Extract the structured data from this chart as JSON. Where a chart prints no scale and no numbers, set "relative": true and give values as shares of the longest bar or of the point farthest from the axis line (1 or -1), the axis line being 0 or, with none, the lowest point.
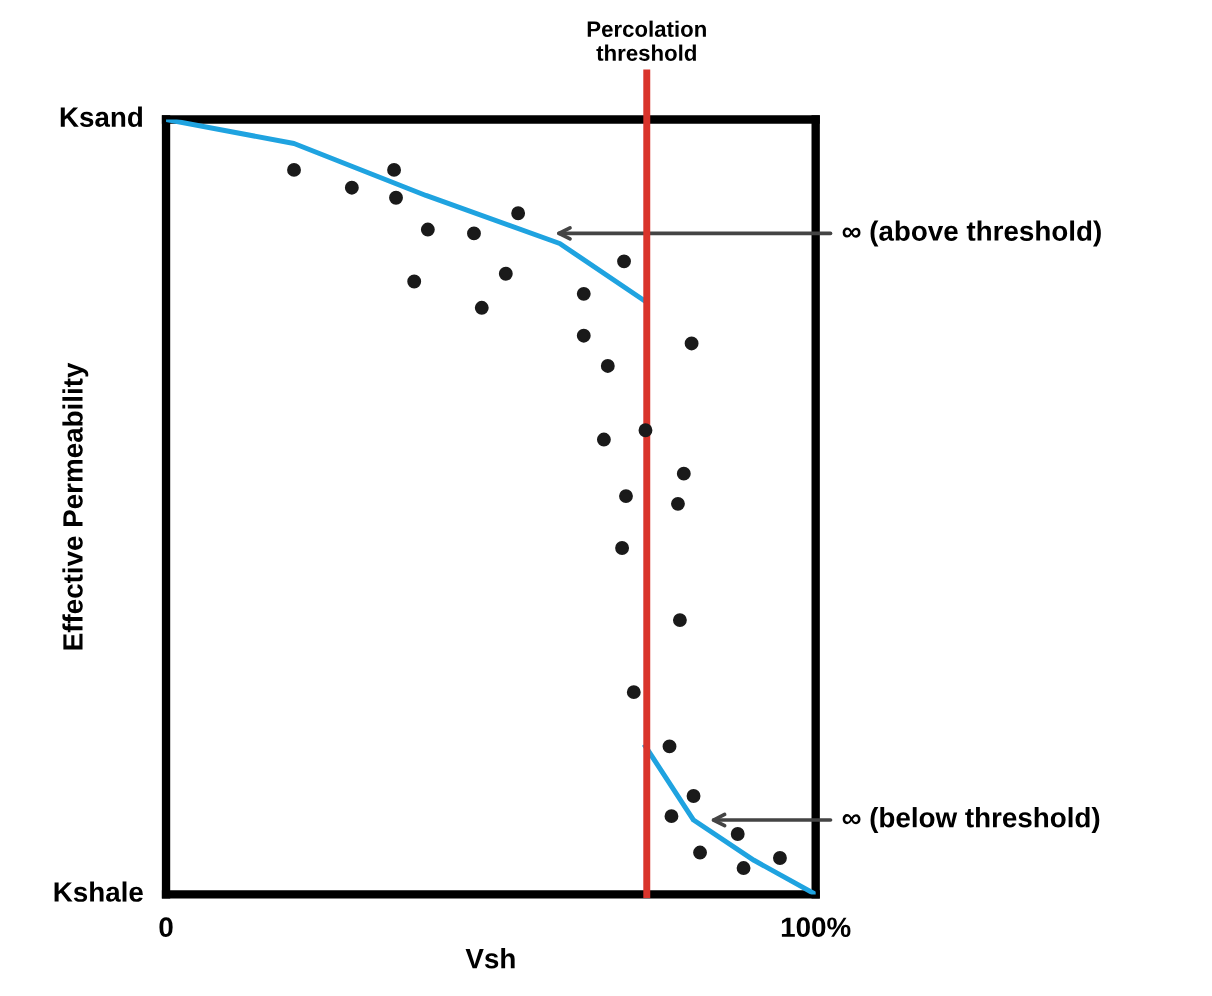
{
  "chart_data": {
    "type": "scatter",
    "xlabel": "Vsh",
    "ylabel": "Effective Permeability",
    "xlim": [
      0,
      100
    ],
    "relative": true,
    "xticks": [
      0,
      {
        "value": 100,
        "label": "100%"
      }
    ],
    "series": [
      {
        "color": "#1a1a1a",
        "marker": "circle",
        "x": [
          19.7,
          28.6,
          35.1,
          35.4,
          40.3,
          47.4,
          54.2,
          38.2,
          52.3,
          48.6,
          70.5,
          64.3,
          64.3,
          68.0,
          80.9,
          67.4,
          73.8,
          79.7,
          70.8,
          78.8,
          70.2,
          79.1,
          72.0,
          77.5,
          81.2,
          77.8,
          88.0,
          82.2,
          88.9,
          94.5
        ],
        "values": [
          0.935,
          0.912,
          0.935,
          0.899,
          0.858,
          0.853,
          0.879,
          0.791,
          0.801,
          0.757,
          0.817,
          0.775,
          0.721,
          0.682,
          0.711,
          0.587,
          0.599,
          0.543,
          0.514,
          0.504,
          0.447,
          0.354,
          0.261,
          0.191,
          0.127,
          0.101,
          0.078,
          0.054,
          0.034,
          0.047
        ]
      },
      {
        "type": "line",
        "color": "#1fa3e0",
        "marker": "none",
        "x": [
          0,
          19.7,
          40,
          60.6,
          73.5
        ],
        "values": [
          1,
          0.969,
          0.902,
          0.84,
          0.767
        ]
      },
      {
        "type": "line",
        "color": "#1fa3e0",
        "marker": "none",
        "x": [
          73.8,
          81.2,
          90.5,
          100
        ],
        "values": [
          0.191,
          0.096,
          0.044,
          0
        ]
      }
    ],
    "ref_lines": [
      {
        "axis": "x",
        "value": 74,
        "label": "Percolation\nthreshold",
        "color": "#d9342b"
      }
    ],
    "annotations": [
      {
        "text": "∞ (above threshold)",
        "x": 59,
        "y": 0.853
      },
      {
        "text": "∞ (below threshold)",
        "x": 82.8,
        "y": 0.096
      },
      {
        "text": "Ksand",
        "x": 0,
        "y": 1
      },
      "Kshale"
    ]
  }
}
